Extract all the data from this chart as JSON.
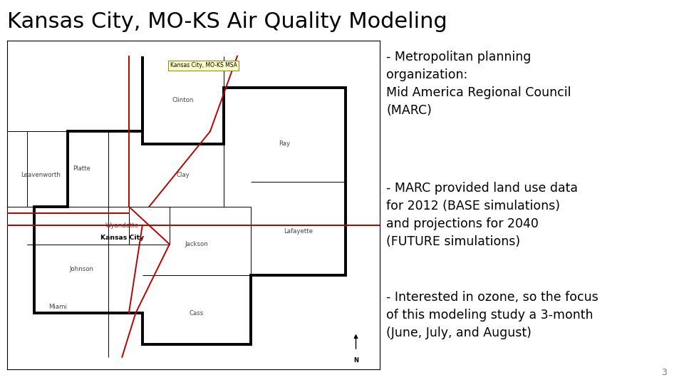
{
  "title": "Kansas City, MO-KS Air Quality Modeling",
  "title_fontsize": 22,
  "title_color": "#000000",
  "background_color": "#ffffff",
  "bullet1": "- Metropolitan planning\norganization:\nMid America Regional Council\n(MARC)",
  "bullet2": "- MARC provided land use data\nfor 2012 (BASE simulations)\nand projections for 2040\n(FUTURE simulations)",
  "bullet3": "- Interested in ozone, so the focus\nof this modeling study a 3-month\n(June, July, and August)",
  "page_number": "3",
  "map_label": "Kansas City, MO-KS MSA",
  "bullet_fontsize": 12.5,
  "road_color": "#bb0000",
  "lw_thin": 0.7,
  "lw_thick": 2.8,
  "lw_road": 1.4
}
